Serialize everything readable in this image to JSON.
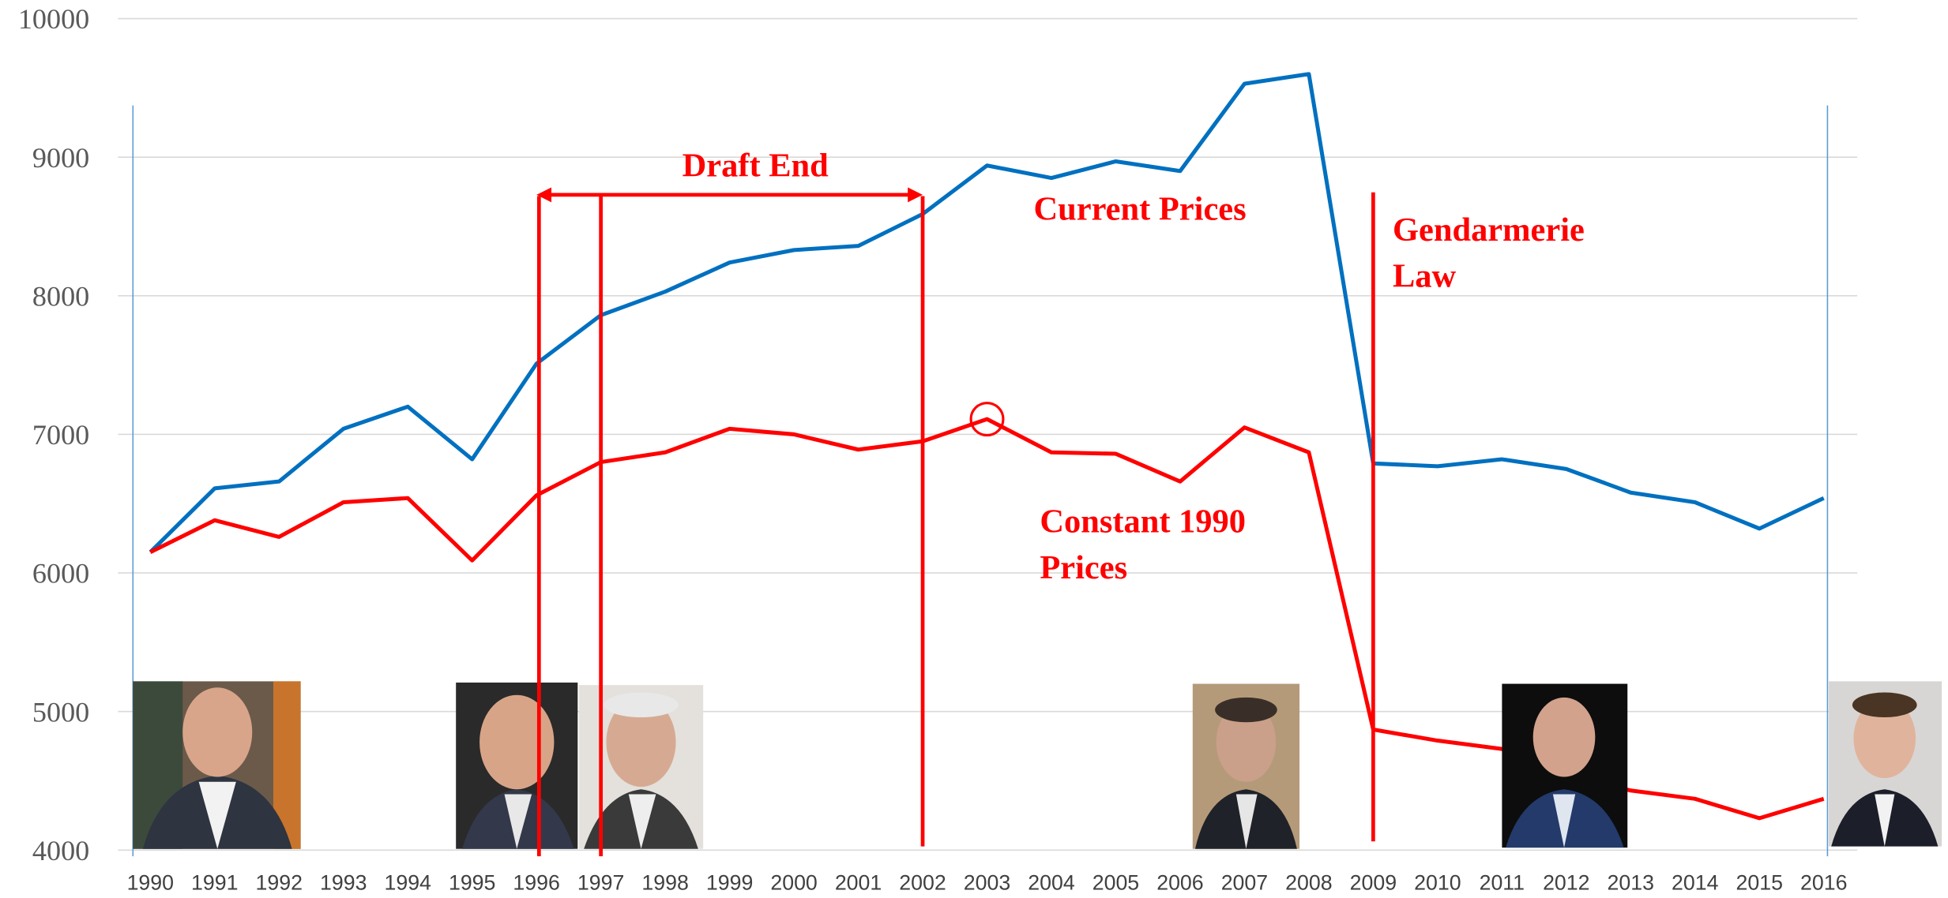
{
  "chart_data": {
    "type": "line",
    "categories": [
      "1990",
      "1991",
      "1992",
      "1993",
      "1994",
      "1995",
      "1996",
      "1997",
      "1998",
      "1999",
      "2000",
      "2001",
      "2002",
      "2003",
      "2004",
      "2005",
      "2006",
      "2007",
      "2008",
      "2009",
      "2010",
      "2011",
      "2012",
      "2013",
      "2014",
      "2015",
      "2016"
    ],
    "series": [
      {
        "label_lines": [
          "Current Prices"
        ],
        "color": "#0070c0",
        "values": [
          6150,
          6610,
          6660,
          7040,
          7200,
          6820,
          7510,
          7860,
          8030,
          8240,
          8330,
          8360,
          8590,
          8940,
          8850,
          8970,
          8900,
          9530,
          9600,
          6790,
          6770,
          6820,
          6750,
          6580,
          6510,
          6320,
          6540
        ]
      },
      {
        "label_lines": [
          "Constant 1990",
          "Prices"
        ],
        "color": "#ff0000",
        "values": [
          6150,
          6380,
          6260,
          6510,
          6540,
          6090,
          6560,
          6800,
          6870,
          7040,
          7000,
          6890,
          6950,
          7110,
          6870,
          6860,
          6660,
          7050,
          6870,
          4870,
          4790,
          4730,
          4550,
          4430,
          4370,
          4230,
          4370
        ]
      }
    ],
    "annotations": [
      {
        "lines": [
          "Draft End"
        ]
      },
      {
        "lines": [
          "Gendarmerie",
          "Law"
        ]
      }
    ],
    "ylim": [
      4000,
      10000
    ],
    "yticks": [
      4000,
      5000,
      6000,
      7000,
      8000,
      9000,
      10000
    ],
    "grid": true
  }
}
